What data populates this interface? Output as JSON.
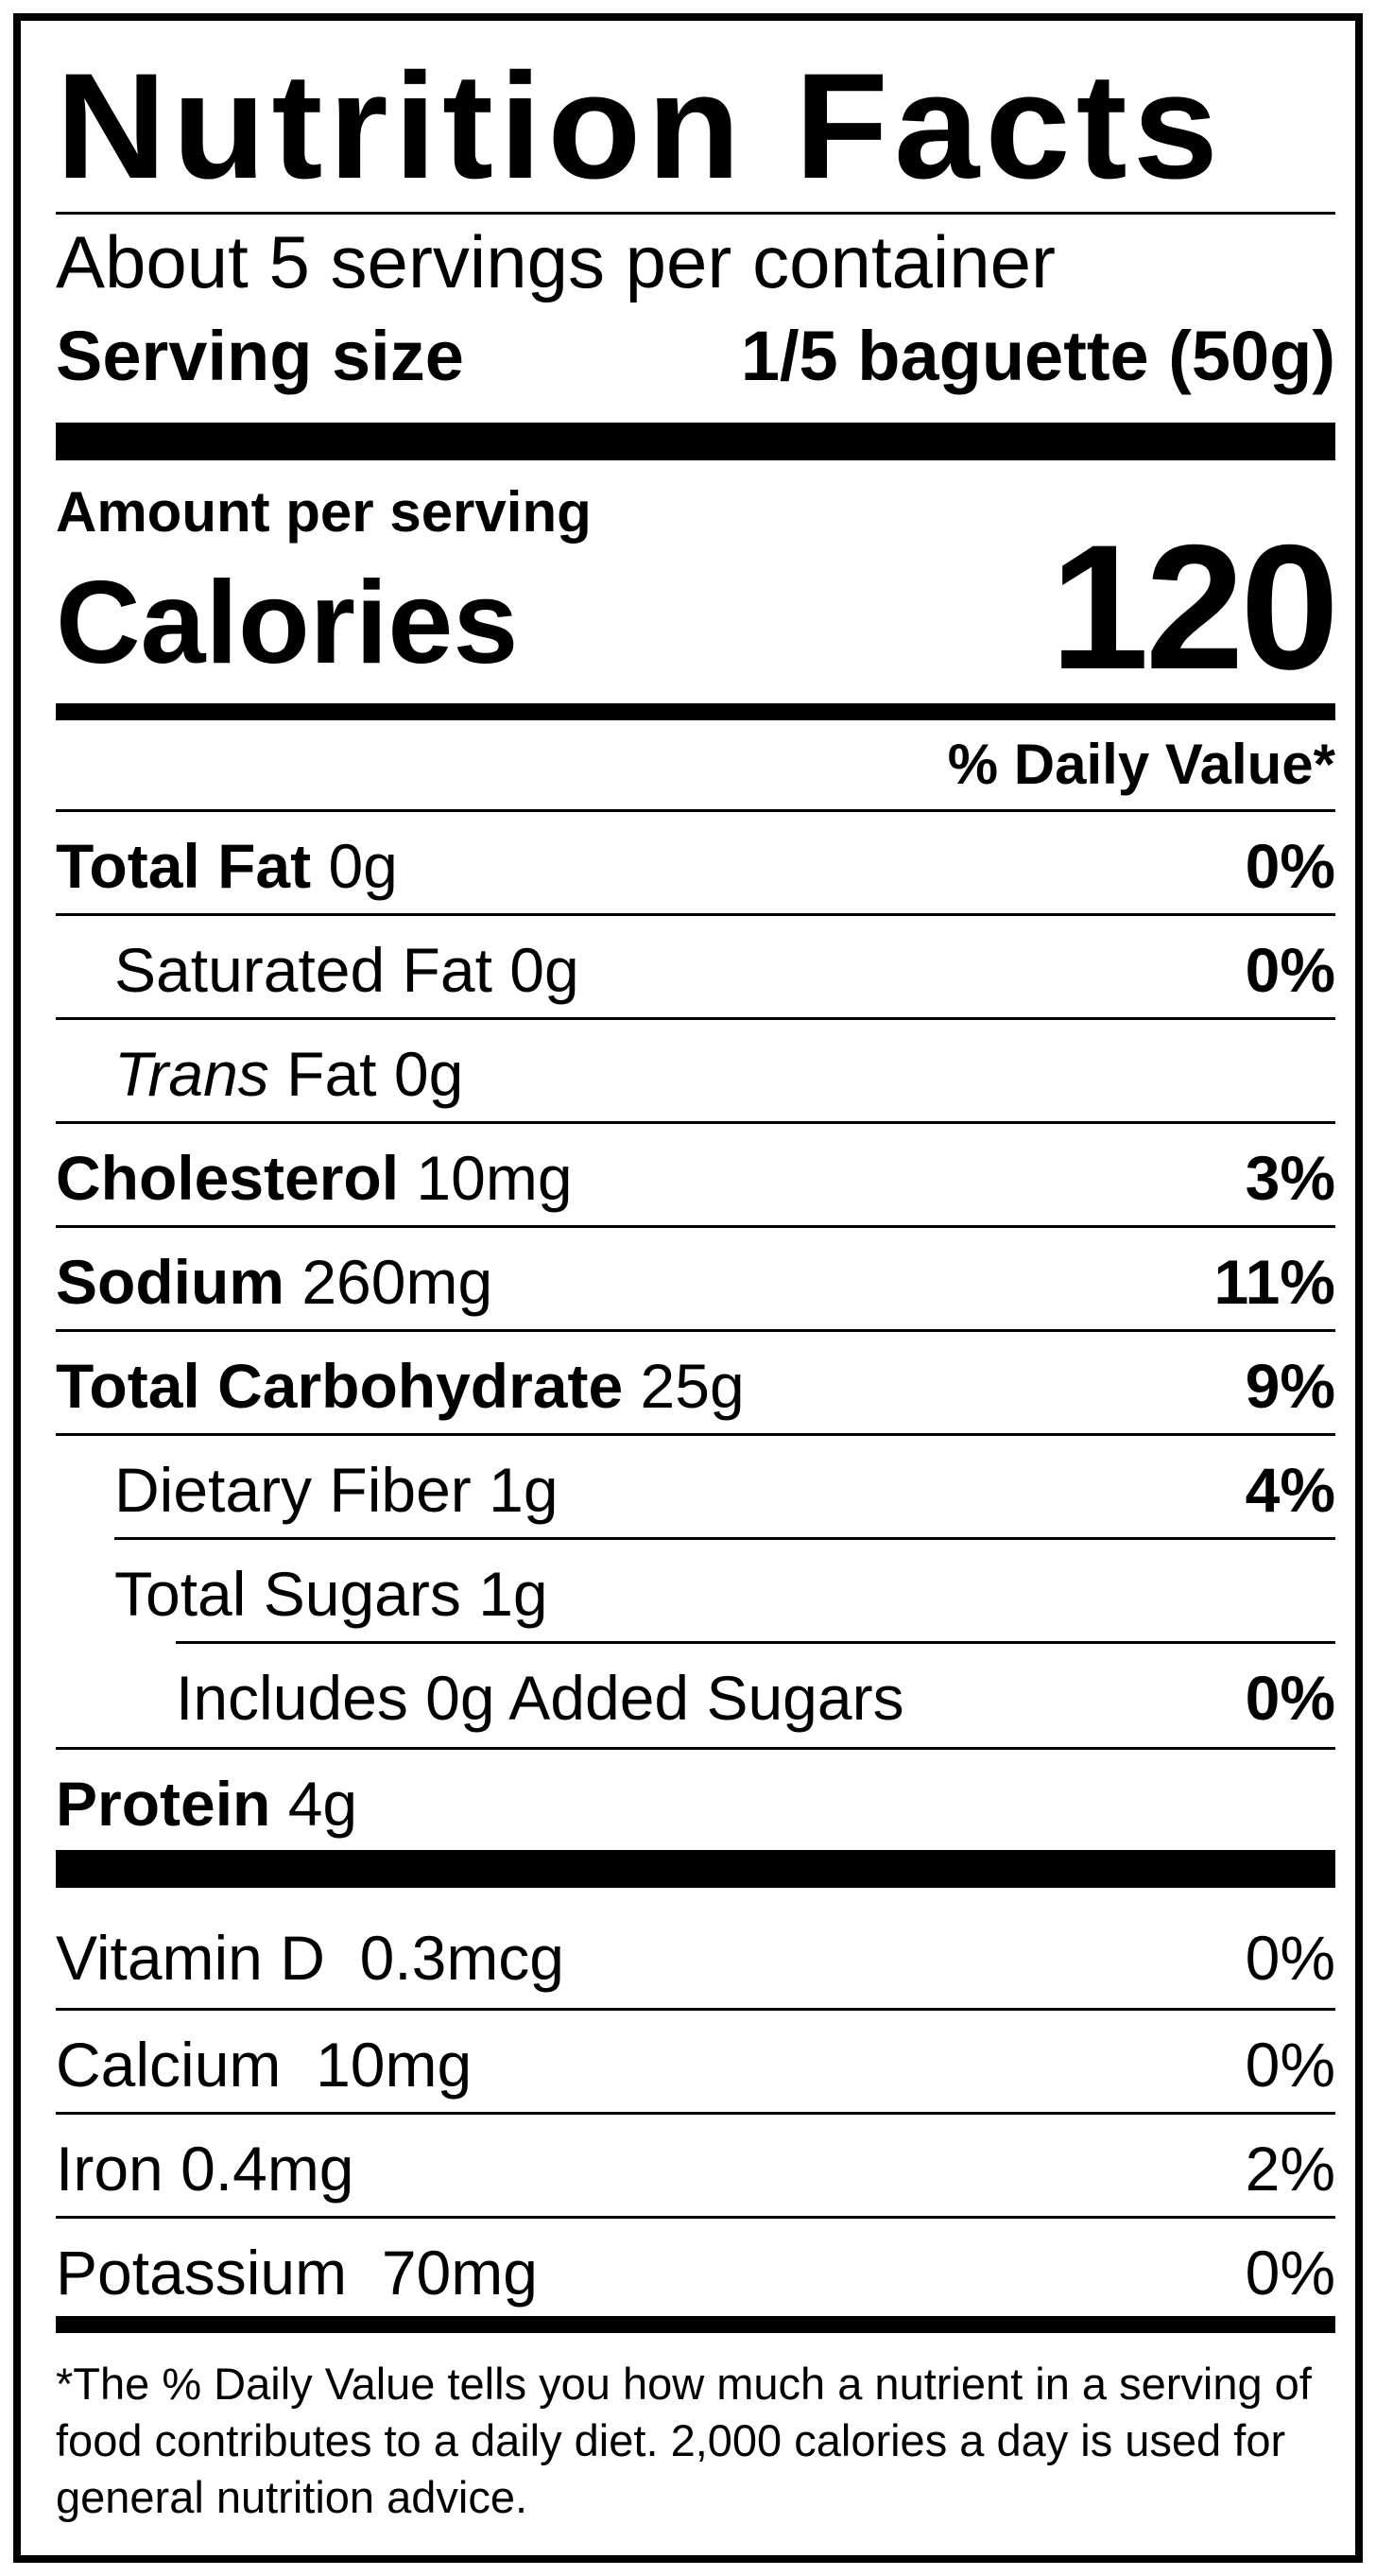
{
  "title": "Nutrition Facts",
  "servings_per_container": "About 5 servings per container",
  "serving_size": {
    "label": "Serving size",
    "value": "1/5 baguette (50g)"
  },
  "amount_per_serving": "Amount per serving",
  "calories": {
    "label": "Calories",
    "value": "120"
  },
  "daily_value_header": "% Daily Value*",
  "nutrients": [
    {
      "name": "Total Fat",
      "amount": "0g",
      "dv": "0%"
    },
    {
      "name": "Saturated Fat",
      "amount": "0g",
      "dv": "0%"
    },
    {
      "name_italic": "Trans",
      "name": "Fat",
      "amount": "0g",
      "dv": ""
    },
    {
      "name": "Cholesterol",
      "amount": "10mg",
      "dv": "3%"
    },
    {
      "name": "Sodium",
      "amount": "260mg",
      "dv": "11%"
    },
    {
      "name": "Total Carbohydrate",
      "amount": "25g",
      "dv": "9%"
    },
    {
      "name": "Dietary Fiber",
      "amount": "1g",
      "dv": "4%"
    },
    {
      "name": "Total Sugars",
      "amount": "1g",
      "dv": ""
    },
    {
      "name": "Includes 0g Added Sugars",
      "amount": "",
      "dv": "0%"
    },
    {
      "name": "Protein",
      "amount": "4g",
      "dv": ""
    }
  ],
  "vitamins": [
    {
      "name": "Vitamin D",
      "amount": "0.3mcg",
      "dv": "0%"
    },
    {
      "name": "Calcium",
      "amount": "10mg",
      "dv": "0%"
    },
    {
      "name": "Iron",
      "amount": "0.4mg",
      "dv": "2%"
    },
    {
      "name": "Potassium",
      "amount": "70mg",
      "dv": "0%"
    }
  ],
  "footnote": "*The % Daily Value tells you how much a nutrient in a serving of food contributes to a daily diet. 2,000 calories a day is used for general nutrition advice."
}
